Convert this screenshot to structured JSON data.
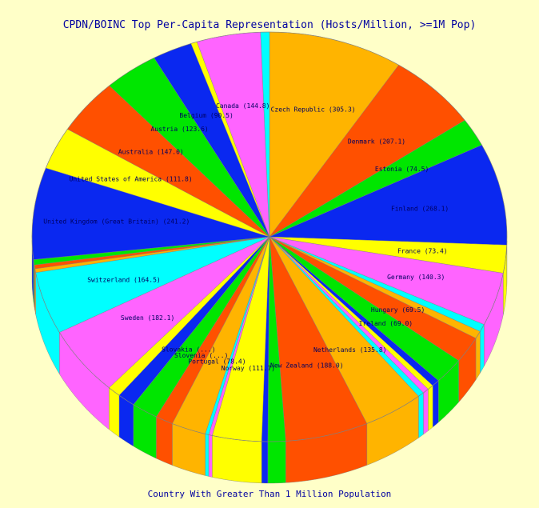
{
  "chart_data": {
    "type": "pie",
    "title": "CPDN/BOINC Top Per-Capita Representation (Hosts/Million, >=1M Pop)",
    "xlabel": "Country With Greater Than 1 Million Population",
    "slices": [
      {
        "label": "Czech Republic (305.3)",
        "value": 305.3,
        "color": "#FFB400"
      },
      {
        "label": "Denmark (207.1)",
        "value": 207.1,
        "color": "#FF5000"
      },
      {
        "label": "Estonia (74.5)",
        "value": 74.5,
        "color": "#00E600"
      },
      {
        "label": "Finland (268.1)",
        "value": 268.1,
        "color": "#0A28F0"
      },
      {
        "label": "France (73.4)",
        "value": 73.4,
        "color": "#FFFF00"
      },
      {
        "label": "Germany (140.3)",
        "value": 140.3,
        "color": "#FF64FF"
      },
      {
        "label": "",
        "value": 20,
        "color": "#00FFFF"
      },
      {
        "label": "",
        "value": 20,
        "color": "#FFB400"
      },
      {
        "label": "Hungary (69.5)",
        "value": 69.5,
        "color": "#FF5000"
      },
      {
        "label": "Ireland (69.0)",
        "value": 69.0,
        "color": "#00E600"
      },
      {
        "label": "",
        "value": 18,
        "color": "#0A28F0"
      },
      {
        "label": "",
        "value": 14,
        "color": "#FFFF00"
      },
      {
        "label": "",
        "value": 14,
        "color": "#FF64FF"
      },
      {
        "label": "",
        "value": 14,
        "color": "#00FFFF"
      },
      {
        "label": "Netherlands (135.8)",
        "value": 135.8,
        "color": "#FFB400"
      },
      {
        "label": "New Zealand (188.0)",
        "value": 188.0,
        "color": "#FF5000"
      },
      {
        "label": "",
        "value": 40,
        "color": "#00E600"
      },
      {
        "label": "",
        "value": 14,
        "color": "#0A28F0"
      },
      {
        "label": "Norway (111.7)",
        "value": 111.7,
        "color": "#FFFF00"
      },
      {
        "label": "",
        "value": 8,
        "color": "#FF64FF"
      },
      {
        "label": "",
        "value": 8,
        "color": "#00FFFF"
      },
      {
        "label": "Portugal (78.4)",
        "value": 78.4,
        "color": "#FFB400"
      },
      {
        "label": "Slovenia (...)",
        "value": 40,
        "color": "#FF5000"
      },
      {
        "label": "Slovakia (...)",
        "value": 60,
        "color": "#00E600"
      },
      {
        "label": "",
        "value": 40,
        "color": "#0A28F0"
      },
      {
        "label": "",
        "value": 30,
        "color": "#FFFF00"
      },
      {
        "label": "Sweden (182.1)",
        "value": 182.1,
        "color": "#FF64FF"
      },
      {
        "label": "Switzerland (164.5)",
        "value": 164.5,
        "color": "#00FFFF"
      },
      {
        "label": "",
        "value": 10,
        "color": "#FFB400"
      },
      {
        "label": "",
        "value": 10,
        "color": "#FF5000"
      },
      {
        "label": "",
        "value": 14,
        "color": "#00E600"
      },
      {
        "label": "United Kingdom (Great Britain) (241.2)",
        "value": 241.2,
        "color": "#0A28F0"
      },
      {
        "label": "United States of America (111.8)",
        "value": 111.8,
        "color": "#FFFF00"
      },
      {
        "label": "Australia (147.0)",
        "value": 147.0,
        "color": "#FF5000"
      },
      {
        "label": "Austria (123.6)",
        "value": 123.6,
        "color": "#00E600"
      },
      {
        "label": "Belgium (90.5)",
        "value": 90.5,
        "color": "#0A28F0"
      },
      {
        "label": "",
        "value": 14,
        "color": "#FFFF00"
      },
      {
        "label": "Canada (144.8)",
        "value": 144.8,
        "color": "#FF64FF"
      },
      {
        "label": "",
        "value": 20,
        "color": "#00FFFF"
      }
    ]
  }
}
